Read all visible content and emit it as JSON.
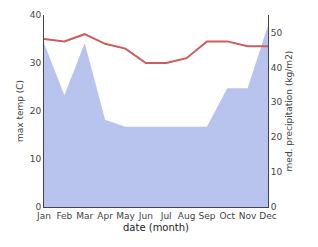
{
  "chart_data": {
    "type": "line",
    "xlabel": "date (month)",
    "ylabel": "max temp (C)",
    "y2label": "med. precipitation (kg/m2)",
    "categories": [
      "Jan",
      "Feb",
      "Mar",
      "Apr",
      "May",
      "Jun",
      "Jul",
      "Aug",
      "Sep",
      "Oct",
      "Nov",
      "Dec"
    ],
    "series": [
      {
        "type": "area",
        "axis": "y2",
        "color": "#b8c4ee",
        "values": [
          47,
          32,
          47,
          25,
          23,
          23,
          23,
          23,
          23,
          34,
          34,
          52
        ]
      },
      {
        "type": "line",
        "color": "#cd5c5c",
        "values": [
          35.0,
          34.5,
          36.0,
          34.0,
          33.0,
          30.0,
          30.0,
          31.0,
          34.5,
          34.5,
          33.5,
          33.5
        ]
      }
    ],
    "ylim": [
      0,
      40
    ],
    "yticks": [
      0,
      10,
      20,
      30,
      40
    ],
    "y2lim": [
      0,
      55
    ],
    "y2ticks": [
      0,
      10,
      20,
      30,
      40,
      50
    ],
    "grid": false
  }
}
